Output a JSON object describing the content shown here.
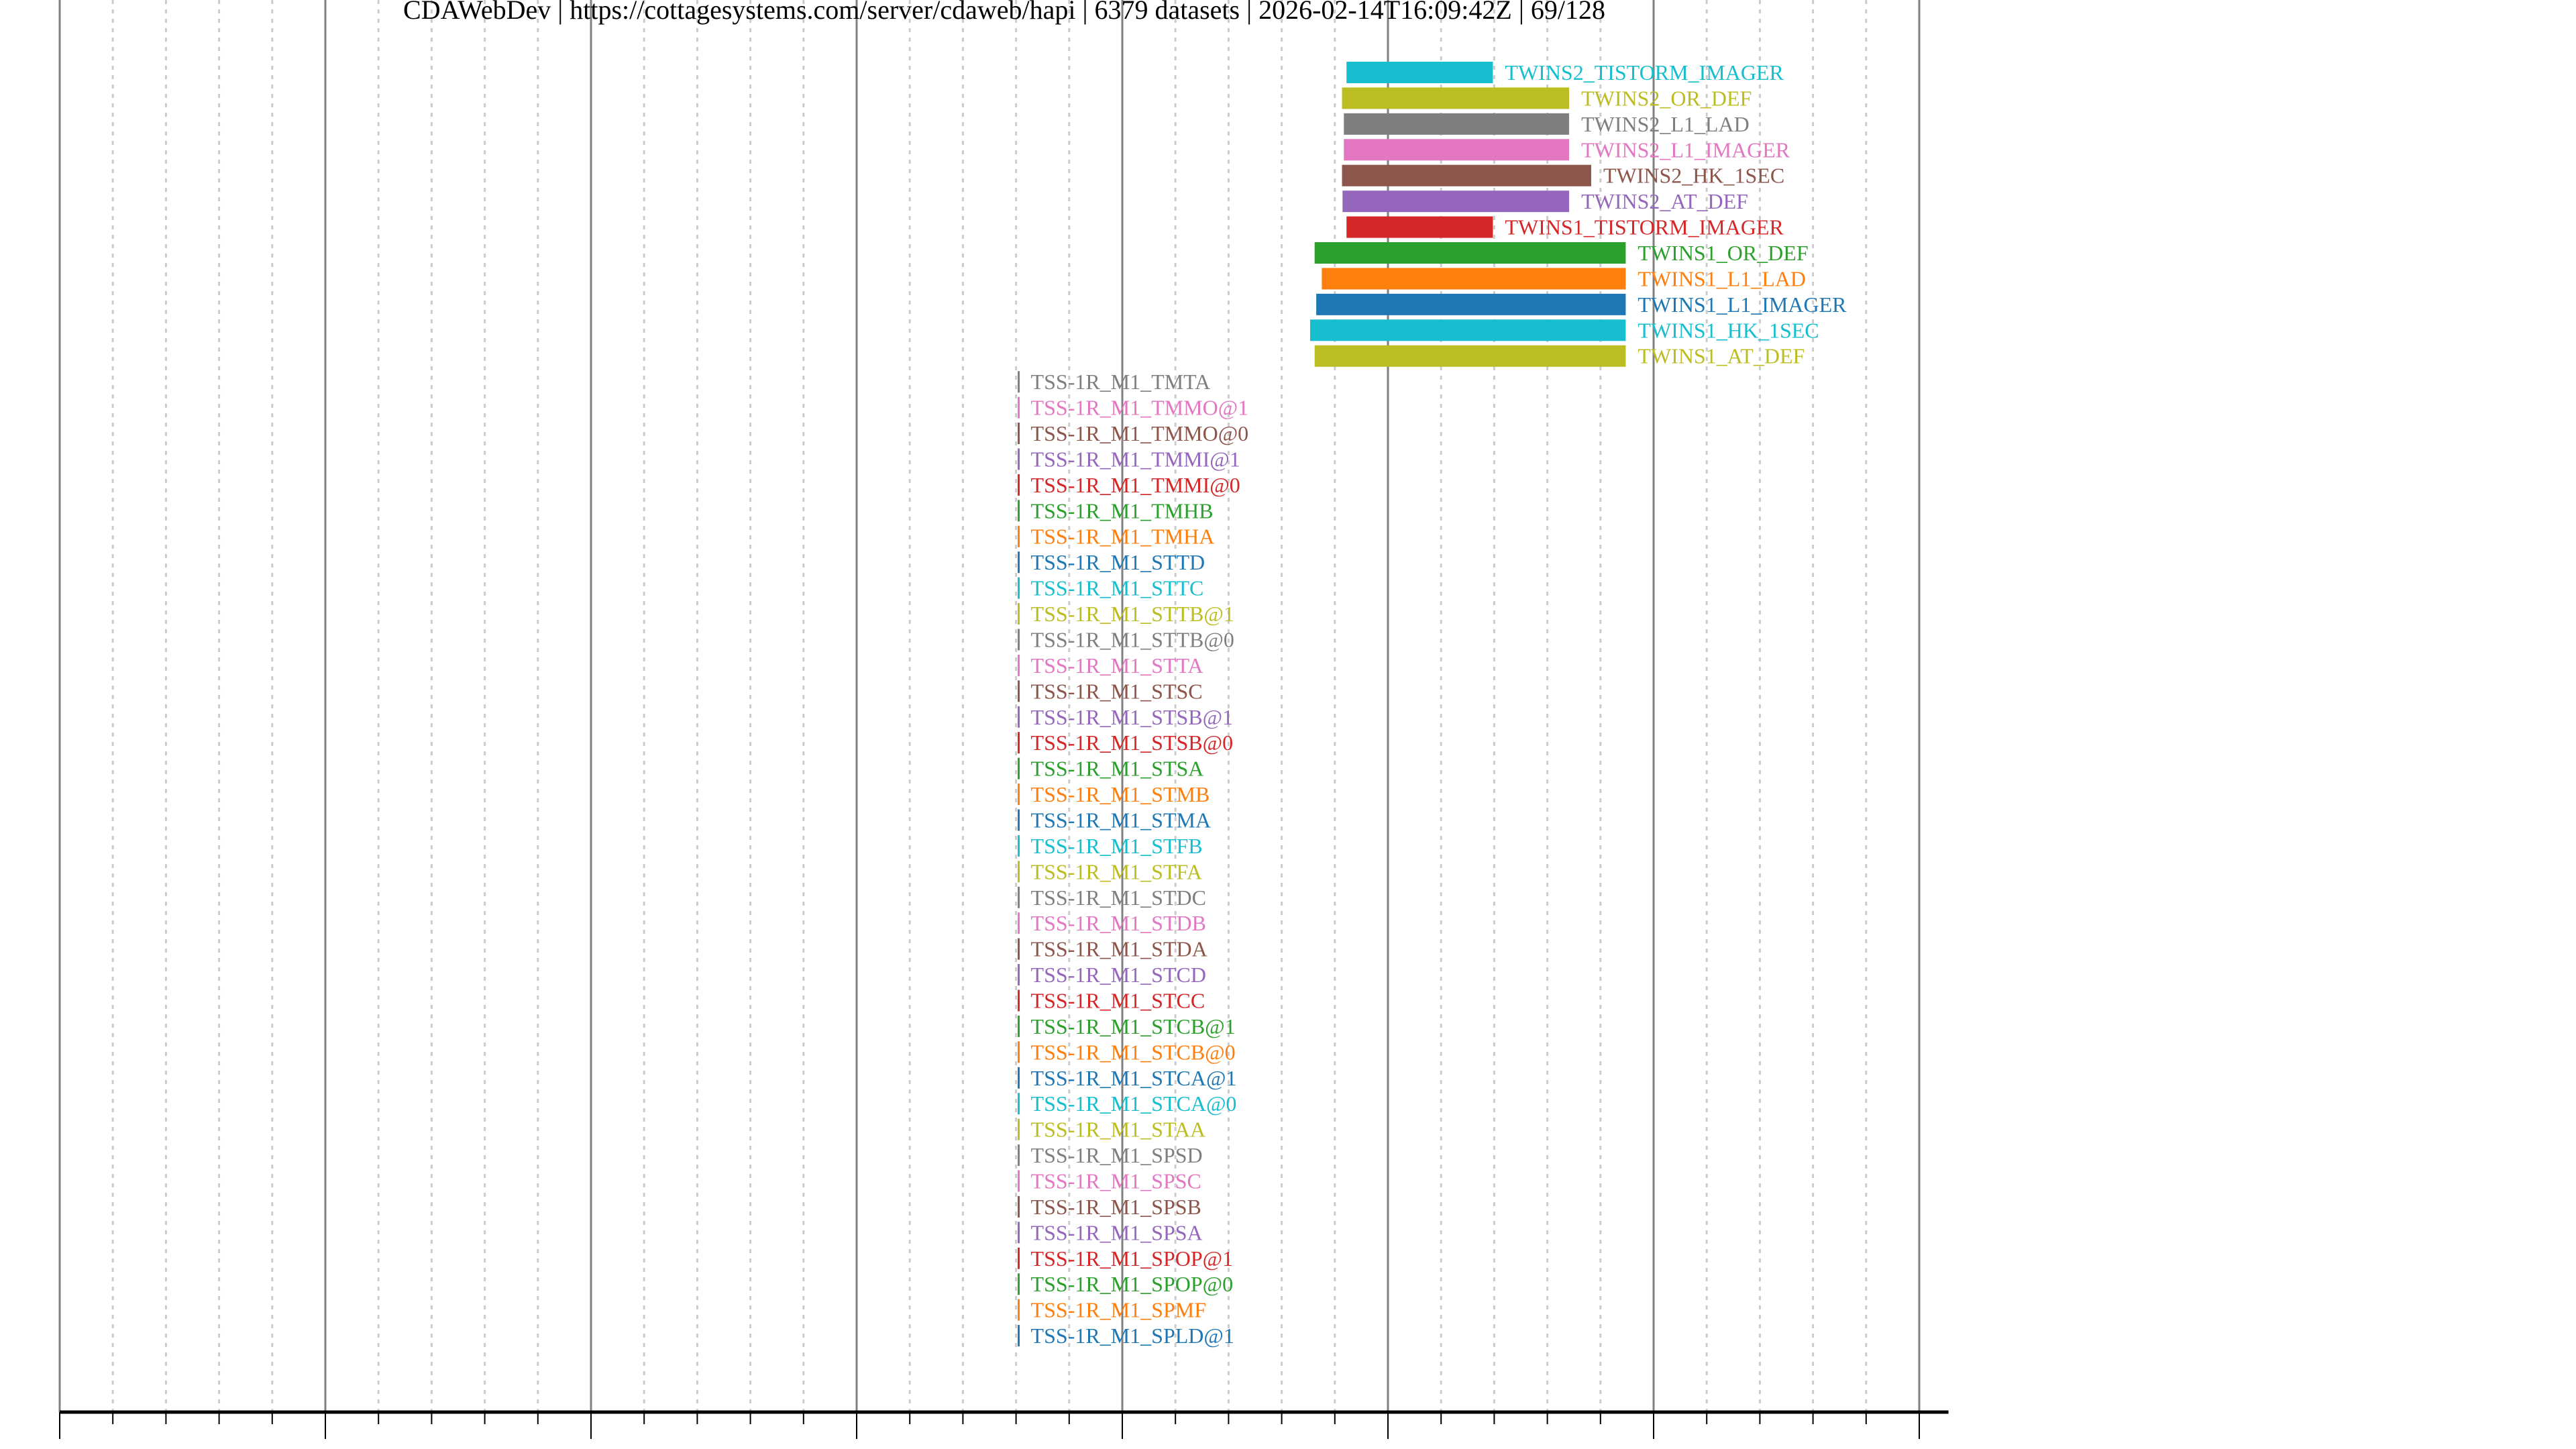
{
  "chart_data": {
    "type": "bar",
    "orientation": "horizontal-timeline",
    "title": "CDAWebDev | https://cottagesystems.com/server/cdaweb/hapi | 6379 datasets | 2026-02-14T16:09:42Z | 69/128",
    "xlabel": "",
    "ylabel": "",
    "xlim": [
      1960,
      2031.1
    ],
    "x_ticks": [
      "1960",
      "1970",
      "1980",
      "1990",
      "2000",
      "2010",
      "2020",
      "2030"
    ],
    "grid": {
      "major_every_years": 10,
      "minor_every_years": 2,
      "major_style": "solid",
      "minor_style": "dotted"
    },
    "palette": [
      "#1f77b4",
      "#ff7f0e",
      "#2ca02c",
      "#d62728",
      "#9467bd",
      "#8c564b",
      "#e377c2",
      "#7f7f7f",
      "#bcbd22",
      "#17becf"
    ],
    "rows": [
      {
        "name": "TWINS2_TISTORM_IMAGER",
        "start": 2008.44,
        "end": 2013.95
      },
      {
        "name": "TWINS2_OR_DEF",
        "start": 2008.27,
        "end": 2016.82
      },
      {
        "name": "TWINS2_L1_LAD",
        "start": 2008.34,
        "end": 2016.82
      },
      {
        "name": "TWINS2_L1_IMAGER",
        "start": 2008.34,
        "end": 2016.82
      },
      {
        "name": "TWINS2_HK_1SEC",
        "start": 2008.27,
        "end": 2017.65
      },
      {
        "name": "TWINS2_AT_DEF",
        "start": 2008.29,
        "end": 2016.82
      },
      {
        "name": "TWINS1_TISTORM_IMAGER",
        "start": 2008.44,
        "end": 2013.95
      },
      {
        "name": "TWINS1_OR_DEF",
        "start": 2007.24,
        "end": 2018.95
      },
      {
        "name": "TWINS1_L1_LAD",
        "start": 2007.51,
        "end": 2018.95
      },
      {
        "name": "TWINS1_L1_IMAGER",
        "start": 2007.3,
        "end": 2018.95
      },
      {
        "name": "TWINS1_HK_1SEC",
        "start": 2007.07,
        "end": 2018.95
      },
      {
        "name": "TWINS1_AT_DEF",
        "start": 2007.24,
        "end": 2018.95
      },
      {
        "name": "TSS-1R_M1_TMTA",
        "start": 1996.1,
        "end": 1996.1
      },
      {
        "name": "TSS-1R_M1_TMMO@1",
        "start": 1996.1,
        "end": 1996.1
      },
      {
        "name": "TSS-1R_M1_TMMO@0",
        "start": 1996.1,
        "end": 1996.1
      },
      {
        "name": "TSS-1R_M1_TMMI@1",
        "start": 1996.1,
        "end": 1996.1
      },
      {
        "name": "TSS-1R_M1_TMMI@0",
        "start": 1996.1,
        "end": 1996.1
      },
      {
        "name": "TSS-1R_M1_TMHB",
        "start": 1996.1,
        "end": 1996.1
      },
      {
        "name": "TSS-1R_M1_TMHA",
        "start": 1996.1,
        "end": 1996.1
      },
      {
        "name": "TSS-1R_M1_STTD",
        "start": 1996.1,
        "end": 1996.1
      },
      {
        "name": "TSS-1R_M1_STTC",
        "start": 1996.1,
        "end": 1996.1
      },
      {
        "name": "TSS-1R_M1_STTB@1",
        "start": 1996.1,
        "end": 1996.1
      },
      {
        "name": "TSS-1R_M1_STTB@0",
        "start": 1996.1,
        "end": 1996.1
      },
      {
        "name": "TSS-1R_M1_STTA",
        "start": 1996.1,
        "end": 1996.1
      },
      {
        "name": "TSS-1R_M1_STSC",
        "start": 1996.1,
        "end": 1996.1
      },
      {
        "name": "TSS-1R_M1_STSB@1",
        "start": 1996.1,
        "end": 1996.1
      },
      {
        "name": "TSS-1R_M1_STSB@0",
        "start": 1996.1,
        "end": 1996.1
      },
      {
        "name": "TSS-1R_M1_STSA",
        "start": 1996.1,
        "end": 1996.1
      },
      {
        "name": "TSS-1R_M1_STMB",
        "start": 1996.1,
        "end": 1996.1
      },
      {
        "name": "TSS-1R_M1_STMA",
        "start": 1996.1,
        "end": 1996.1
      },
      {
        "name": "TSS-1R_M1_STFB",
        "start": 1996.1,
        "end": 1996.1
      },
      {
        "name": "TSS-1R_M1_STFA",
        "start": 1996.1,
        "end": 1996.1
      },
      {
        "name": "TSS-1R_M1_STDC",
        "start": 1996.1,
        "end": 1996.1
      },
      {
        "name": "TSS-1R_M1_STDB",
        "start": 1996.1,
        "end": 1996.1
      },
      {
        "name": "TSS-1R_M1_STDA",
        "start": 1996.1,
        "end": 1996.1
      },
      {
        "name": "TSS-1R_M1_STCD",
        "start": 1996.1,
        "end": 1996.1
      },
      {
        "name": "TSS-1R_M1_STCC",
        "start": 1996.1,
        "end": 1996.1
      },
      {
        "name": "TSS-1R_M1_STCB@1",
        "start": 1996.1,
        "end": 1996.1
      },
      {
        "name": "TSS-1R_M1_STCB@0",
        "start": 1996.1,
        "end": 1996.1
      },
      {
        "name": "TSS-1R_M1_STCA@1",
        "start": 1996.1,
        "end": 1996.1
      },
      {
        "name": "TSS-1R_M1_STCA@0",
        "start": 1996.1,
        "end": 1996.1
      },
      {
        "name": "TSS-1R_M1_STAA",
        "start": 1996.1,
        "end": 1996.1
      },
      {
        "name": "TSS-1R_M1_SPSD",
        "start": 1996.1,
        "end": 1996.1
      },
      {
        "name": "TSS-1R_M1_SPSC",
        "start": 1996.1,
        "end": 1996.1
      },
      {
        "name": "TSS-1R_M1_SPSB",
        "start": 1996.1,
        "end": 1996.1
      },
      {
        "name": "TSS-1R_M1_SPSA",
        "start": 1996.1,
        "end": 1996.1
      },
      {
        "name": "TSS-1R_M1_SPOP@1",
        "start": 1996.1,
        "end": 1996.1
      },
      {
        "name": "TSS-1R_M1_SPOP@0",
        "start": 1996.1,
        "end": 1996.1
      },
      {
        "name": "TSS-1R_M1_SPMF",
        "start": 1996.1,
        "end": 1996.1
      },
      {
        "name": "TSS-1R_M1_SPLD@1",
        "start": 1996.1,
        "end": 1996.1
      }
    ]
  }
}
